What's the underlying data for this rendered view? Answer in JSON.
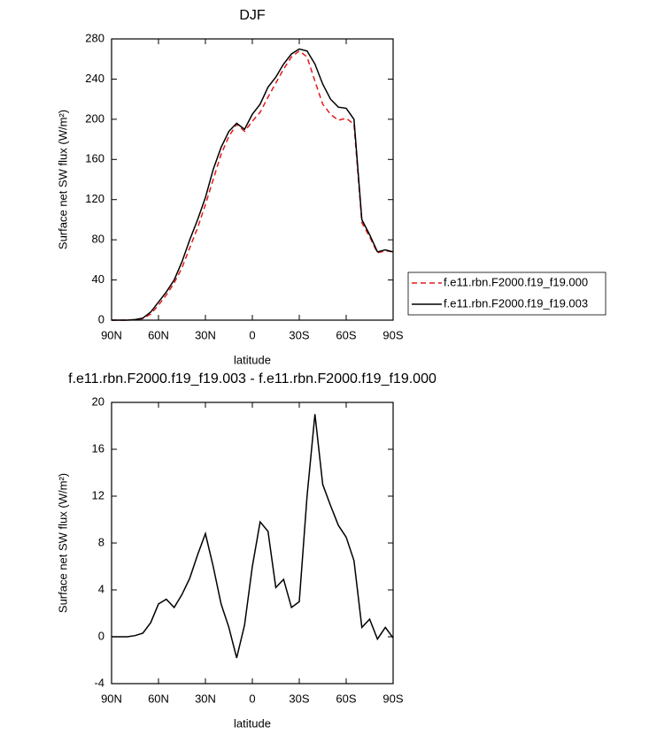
{
  "chart_data": [
    {
      "type": "line",
      "title": "DJF",
      "xlabel": "latitude",
      "ylabel": "Surface net SW flux (W/m²)",
      "x": [
        90,
        85,
        80,
        75,
        70,
        65,
        60,
        55,
        50,
        45,
        40,
        35,
        30,
        25,
        20,
        15,
        10,
        5,
        0,
        -5,
        -10,
        -15,
        -20,
        -25,
        -30,
        -35,
        -40,
        -45,
        -50,
        -55,
        -60,
        -65,
        -70,
        -75,
        -80,
        -85,
        -90
      ],
      "series": [
        {
          "name": "f.e11.rbn.F2000.f19_f19.000",
          "color": "#e41a1c",
          "linestyle": "dashed",
          "values": [
            0,
            0,
            0,
            0.4,
            1.5,
            6,
            15,
            25,
            37,
            52,
            72,
            92,
            115,
            140,
            165,
            183,
            195,
            188,
            198,
            207,
            222,
            236,
            250,
            262,
            268,
            262,
            238,
            215,
            205,
            199,
            201,
            195,
            97,
            83,
            67,
            69,
            68
          ]
        },
        {
          "name": "f.e11.rbn.F2000.f19_f19.003",
          "color": "#000000",
          "linestyle": "solid",
          "values": [
            0,
            0,
            0,
            0.5,
            2,
            8,
            18,
            28,
            40,
            58,
            80,
            100,
            122,
            150,
            172,
            188,
            196,
            190,
            205,
            215,
            232,
            242,
            255,
            265,
            270,
            268,
            255,
            235,
            220,
            212,
            211,
            200,
            100,
            85,
            68,
            70,
            68
          ]
        }
      ],
      "xlim": [
        90,
        -90
      ],
      "xticks": [
        {
          "value": 90,
          "label": "90N"
        },
        {
          "value": 60,
          "label": "60N"
        },
        {
          "value": 30,
          "label": "30N"
        },
        0,
        {
          "value": -30,
          "label": "30S"
        },
        {
          "value": -60,
          "label": "60S"
        },
        {
          "value": -90,
          "label": "90S"
        }
      ],
      "ylim": [
        0,
        280
      ],
      "yticks": [
        0,
        40,
        80,
        120,
        160,
        200,
        240,
        280
      ],
      "legend": "right"
    },
    {
      "type": "line",
      "title": "f.e11.rbn.F2000.f19_f19.003 - f.e11.rbn.F2000.f19_f19.000",
      "xlabel": "latitude",
      "ylabel": "Surface net SW flux (W/m²)",
      "x": [
        90,
        85,
        80,
        75,
        70,
        65,
        60,
        55,
        50,
        45,
        40,
        35,
        30,
        25,
        20,
        15,
        10,
        5,
        0,
        -5,
        -10,
        -15,
        -20,
        -25,
        -30,
        -35,
        -40,
        -45,
        -50,
        -55,
        -60,
        -65,
        -70,
        -75,
        -80,
        -85,
        -90
      ],
      "series": [
        {
          "color": "#000000",
          "linestyle": "solid",
          "values": [
            0,
            0,
            0,
            0.1,
            0.3,
            1.2,
            2.8,
            3.2,
            2.5,
            3.6,
            5,
            7,
            8.8,
            6,
            2.8,
            0.8,
            -1.8,
            1,
            6,
            9.8,
            9,
            4.2,
            4.9,
            2.5,
            3,
            12,
            19,
            13,
            11.2,
            9.5,
            8.5,
            6.5,
            0.8,
            1.5,
            -0.2,
            0.8,
            -0.1
          ]
        }
      ],
      "xlim": [
        90,
        -90
      ],
      "xticks": [
        {
          "value": 90,
          "label": "90N"
        },
        {
          "value": 60,
          "label": "60N"
        },
        {
          "value": 30,
          "label": "30N"
        },
        0,
        {
          "value": -30,
          "label": "30S"
        },
        {
          "value": -60,
          "label": "60S"
        },
        {
          "value": -90,
          "label": "90S"
        }
      ],
      "ylim": [
        -4,
        20
      ],
      "yticks": [
        -4,
        0,
        4,
        8,
        12,
        16,
        20
      ]
    }
  ]
}
